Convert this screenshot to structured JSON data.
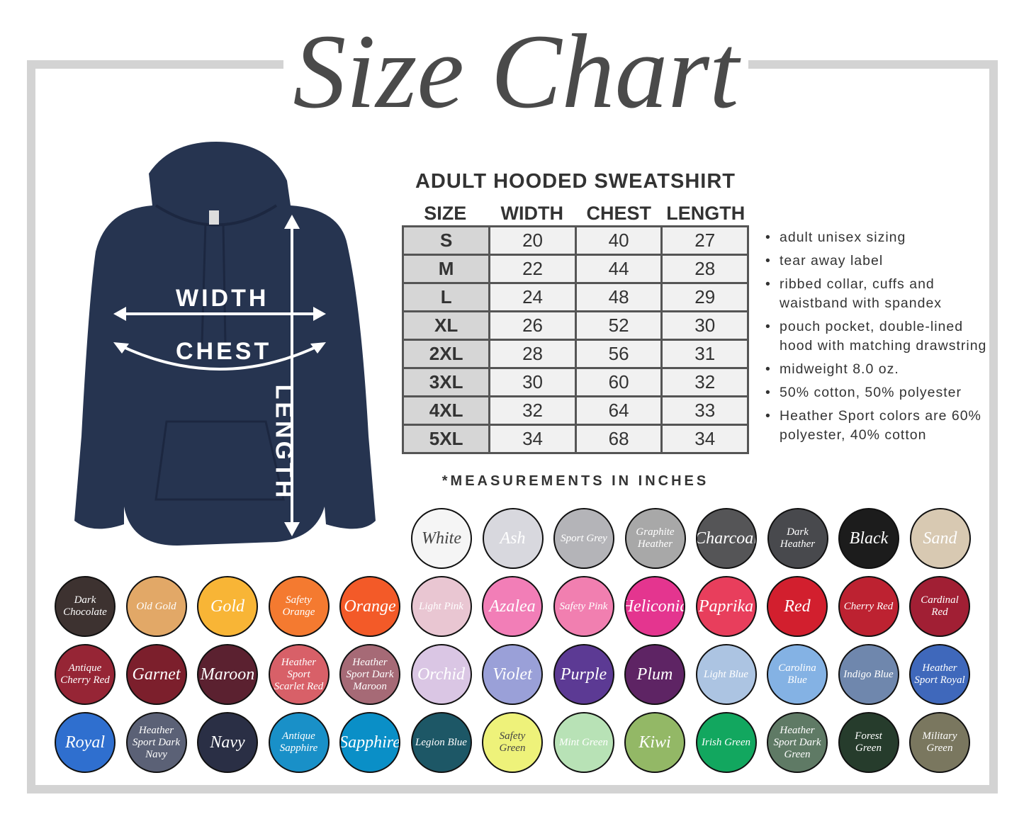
{
  "title": "Size Chart",
  "measure_labels": {
    "width": "WIDTH",
    "chest": "CHEST",
    "length": "LENGTH"
  },
  "table": {
    "title": "ADULT HOODED SWEATSHIRT",
    "headers": [
      "SIZE",
      "WIDTH",
      "CHEST",
      "LENGTH"
    ],
    "rows": [
      [
        "S",
        "20",
        "40",
        "27"
      ],
      [
        "M",
        "22",
        "44",
        "28"
      ],
      [
        "L",
        "24",
        "48",
        "29"
      ],
      [
        "XL",
        "26",
        "52",
        "30"
      ],
      [
        "2XL",
        "28",
        "56",
        "31"
      ],
      [
        "3XL",
        "30",
        "60",
        "32"
      ],
      [
        "4XL",
        "32",
        "64",
        "33"
      ],
      [
        "5XL",
        "34",
        "68",
        "34"
      ]
    ],
    "note": "*MEASUREMENTS IN INCHES"
  },
  "features": [
    "adult unisex sizing",
    "tear away label",
    "ribbed collar, cuffs and waistband with spandex",
    "pouch pocket, double-lined hood with matching drawstring",
    "midweight 8.0 oz.",
    "50% cotton, 50% polyester",
    "Heather Sport colors are 60% polyester, 40% cotton"
  ],
  "hoodie_color": "#263450",
  "swatches": [
    [
      {
        "name": "White",
        "color": "#f5f5f5",
        "text": "#444"
      },
      {
        "name": "Ash",
        "color": "#d8d8de",
        "text": "#fff"
      },
      {
        "name": "Sport Grey",
        "color": "#b4b4b8",
        "text": "#fff"
      },
      {
        "name": "Graphite Heather",
        "color": "#a8a8a8",
        "text": "#fff"
      },
      {
        "name": "Charcoal",
        "color": "#555557",
        "text": "#fff"
      },
      {
        "name": "Dark Heather",
        "color": "#48494d",
        "text": "#fff"
      },
      {
        "name": "Black",
        "color": "#1c1c1c",
        "text": "#fff"
      },
      {
        "name": "Sand",
        "color": "#d8c9b2",
        "text": "#fff"
      }
    ],
    [
      {
        "name": "Dark Chocolate",
        "color": "#3d3230",
        "text": "#fff"
      },
      {
        "name": "Old Gold",
        "color": "#e2a867",
        "text": "#fff"
      },
      {
        "name": "Gold",
        "color": "#f8b536",
        "text": "#fff"
      },
      {
        "name": "Safety Orange",
        "color": "#f47a30",
        "text": "#fff"
      },
      {
        "name": "Orange",
        "color": "#f35a28",
        "text": "#fff"
      },
      {
        "name": "Light Pink",
        "color": "#e9c6d2",
        "text": "#fff"
      },
      {
        "name": "Azalea",
        "color": "#f27eb7",
        "text": "#fff"
      },
      {
        "name": "Safety Pink",
        "color": "#f17fb0",
        "text": "#fff"
      },
      {
        "name": "Heliconia",
        "color": "#e4358f",
        "text": "#fff"
      },
      {
        "name": "Paprika",
        "color": "#e83e5c",
        "text": "#fff"
      },
      {
        "name": "Red",
        "color": "#d21f2e",
        "text": "#fff"
      },
      {
        "name": "Cherry Red",
        "color": "#bd2231",
        "text": "#fff"
      },
      {
        "name": "Cardinal Red",
        "color": "#a11f34",
        "text": "#fff"
      }
    ],
    [
      {
        "name": "Antique Cherry Red",
        "color": "#962535",
        "text": "#fff"
      },
      {
        "name": "Garnet",
        "color": "#7c1f2c",
        "text": "#fff"
      },
      {
        "name": "Maroon",
        "color": "#5b2130",
        "text": "#fff"
      },
      {
        "name": "Heather Sport Scarlet Red",
        "color": "#d86068",
        "text": "#fff"
      },
      {
        "name": "Heather Sport Dark Maroon",
        "color": "#a66a76",
        "text": "#fff"
      },
      {
        "name": "Orchid",
        "color": "#dac6e4",
        "text": "#fff"
      },
      {
        "name": "Violet",
        "color": "#9aa0d8",
        "text": "#fff"
      },
      {
        "name": "Purple",
        "color": "#5c3a94",
        "text": "#fff"
      },
      {
        "name": "Plum",
        "color": "#5e2464",
        "text": "#fff"
      },
      {
        "name": "Light Blue",
        "color": "#acc4e2",
        "text": "#fff"
      },
      {
        "name": "Carolina Blue",
        "color": "#84b2e4",
        "text": "#fff"
      },
      {
        "name": "Indigo Blue",
        "color": "#6f87ad",
        "text": "#fff"
      },
      {
        "name": "Heather Sport Royal",
        "color": "#3f68bb",
        "text": "#fff"
      }
    ],
    [
      {
        "name": "Royal",
        "color": "#2f6fcf",
        "text": "#fff"
      },
      {
        "name": "Heather Sport Dark Navy",
        "color": "#5b6176",
        "text": "#fff"
      },
      {
        "name": "Navy",
        "color": "#2a2f45",
        "text": "#fff"
      },
      {
        "name": "Antique Sapphire",
        "color": "#1990c8",
        "text": "#fff"
      },
      {
        "name": "Sapphire",
        "color": "#0a8fc7",
        "text": "#fff"
      },
      {
        "name": "Legion Blue",
        "color": "#1d5766",
        "text": "#fff"
      },
      {
        "name": "Safety Green",
        "color": "#eef27a",
        "text": "#444"
      },
      {
        "name": "Mint Green",
        "color": "#b8e2b6",
        "text": "#fff"
      },
      {
        "name": "Kiwi",
        "color": "#93b866",
        "text": "#fff"
      },
      {
        "name": "Irish Green",
        "color": "#12a75f",
        "text": "#fff"
      },
      {
        "name": "Heather Sport Dark Green",
        "color": "#5f7a65",
        "text": "#fff"
      },
      {
        "name": "Forest Green",
        "color": "#263c2c",
        "text": "#fff"
      },
      {
        "name": "Military Green",
        "color": "#7a775f",
        "text": "#fff"
      }
    ]
  ]
}
